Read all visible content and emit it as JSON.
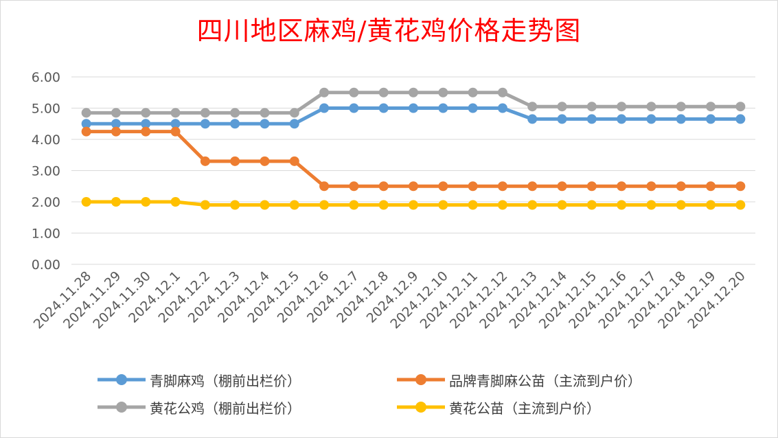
{
  "chart_data": {
    "type": "line",
    "title": "四川地区麻鸡/黄花鸡价格走势图",
    "categories": [
      "2024.11.28",
      "2024.11.29",
      "2024.11.30",
      "2024.12.1",
      "2024.12.2",
      "2024.12.3",
      "2024.12.4",
      "2024.12.5",
      "2024.12.6",
      "2024.12.7",
      "2024.12.8",
      "2024.12.9",
      "2024.12.10",
      "2024.12.11",
      "2024.12.12",
      "2024.12.13",
      "2024.12.14",
      "2024.12.15",
      "2024.12.16",
      "2024.12.17",
      "2024.12.18",
      "2024.12.19",
      "2024.12.20"
    ],
    "y_ticks": [
      "0.00",
      "1.00",
      "2.00",
      "3.00",
      "4.00",
      "5.00",
      "6.00"
    ],
    "ylim": [
      0,
      6
    ],
    "grid": true,
    "legend_position": "bottom",
    "series": [
      {
        "name": "青脚麻鸡（棚前出栏价）",
        "color": "#5b9bd5",
        "values": [
          4.5,
          4.5,
          4.5,
          4.5,
          4.5,
          4.5,
          4.5,
          4.5,
          5.0,
          5.0,
          5.0,
          5.0,
          5.0,
          5.0,
          5.0,
          4.65,
          4.65,
          4.65,
          4.65,
          4.65,
          4.65,
          4.65,
          4.65
        ]
      },
      {
        "name": "品牌青脚麻公苗（主流到户价）",
        "color": "#ed7d31",
        "values": [
          4.25,
          4.25,
          4.25,
          4.25,
          3.3,
          3.3,
          3.3,
          3.3,
          2.5,
          2.5,
          2.5,
          2.5,
          2.5,
          2.5,
          2.5,
          2.5,
          2.5,
          2.5,
          2.5,
          2.5,
          2.5,
          2.5,
          2.5
        ]
      },
      {
        "name": "黄花公鸡（棚前出栏价）",
        "color": "#a5a5a5",
        "values": [
          4.85,
          4.85,
          4.85,
          4.85,
          4.85,
          4.85,
          4.85,
          4.85,
          5.5,
          5.5,
          5.5,
          5.5,
          5.5,
          5.5,
          5.5,
          5.05,
          5.05,
          5.05,
          5.05,
          5.05,
          5.05,
          5.05,
          5.05
        ]
      },
      {
        "name": "黄花公苗（主流到户价）",
        "color": "#ffc000",
        "values": [
          2.0,
          2.0,
          2.0,
          2.0,
          1.9,
          1.9,
          1.9,
          1.9,
          1.9,
          1.9,
          1.9,
          1.9,
          1.9,
          1.9,
          1.9,
          1.9,
          1.9,
          1.9,
          1.9,
          1.9,
          1.9,
          1.9,
          1.9
        ]
      }
    ]
  }
}
